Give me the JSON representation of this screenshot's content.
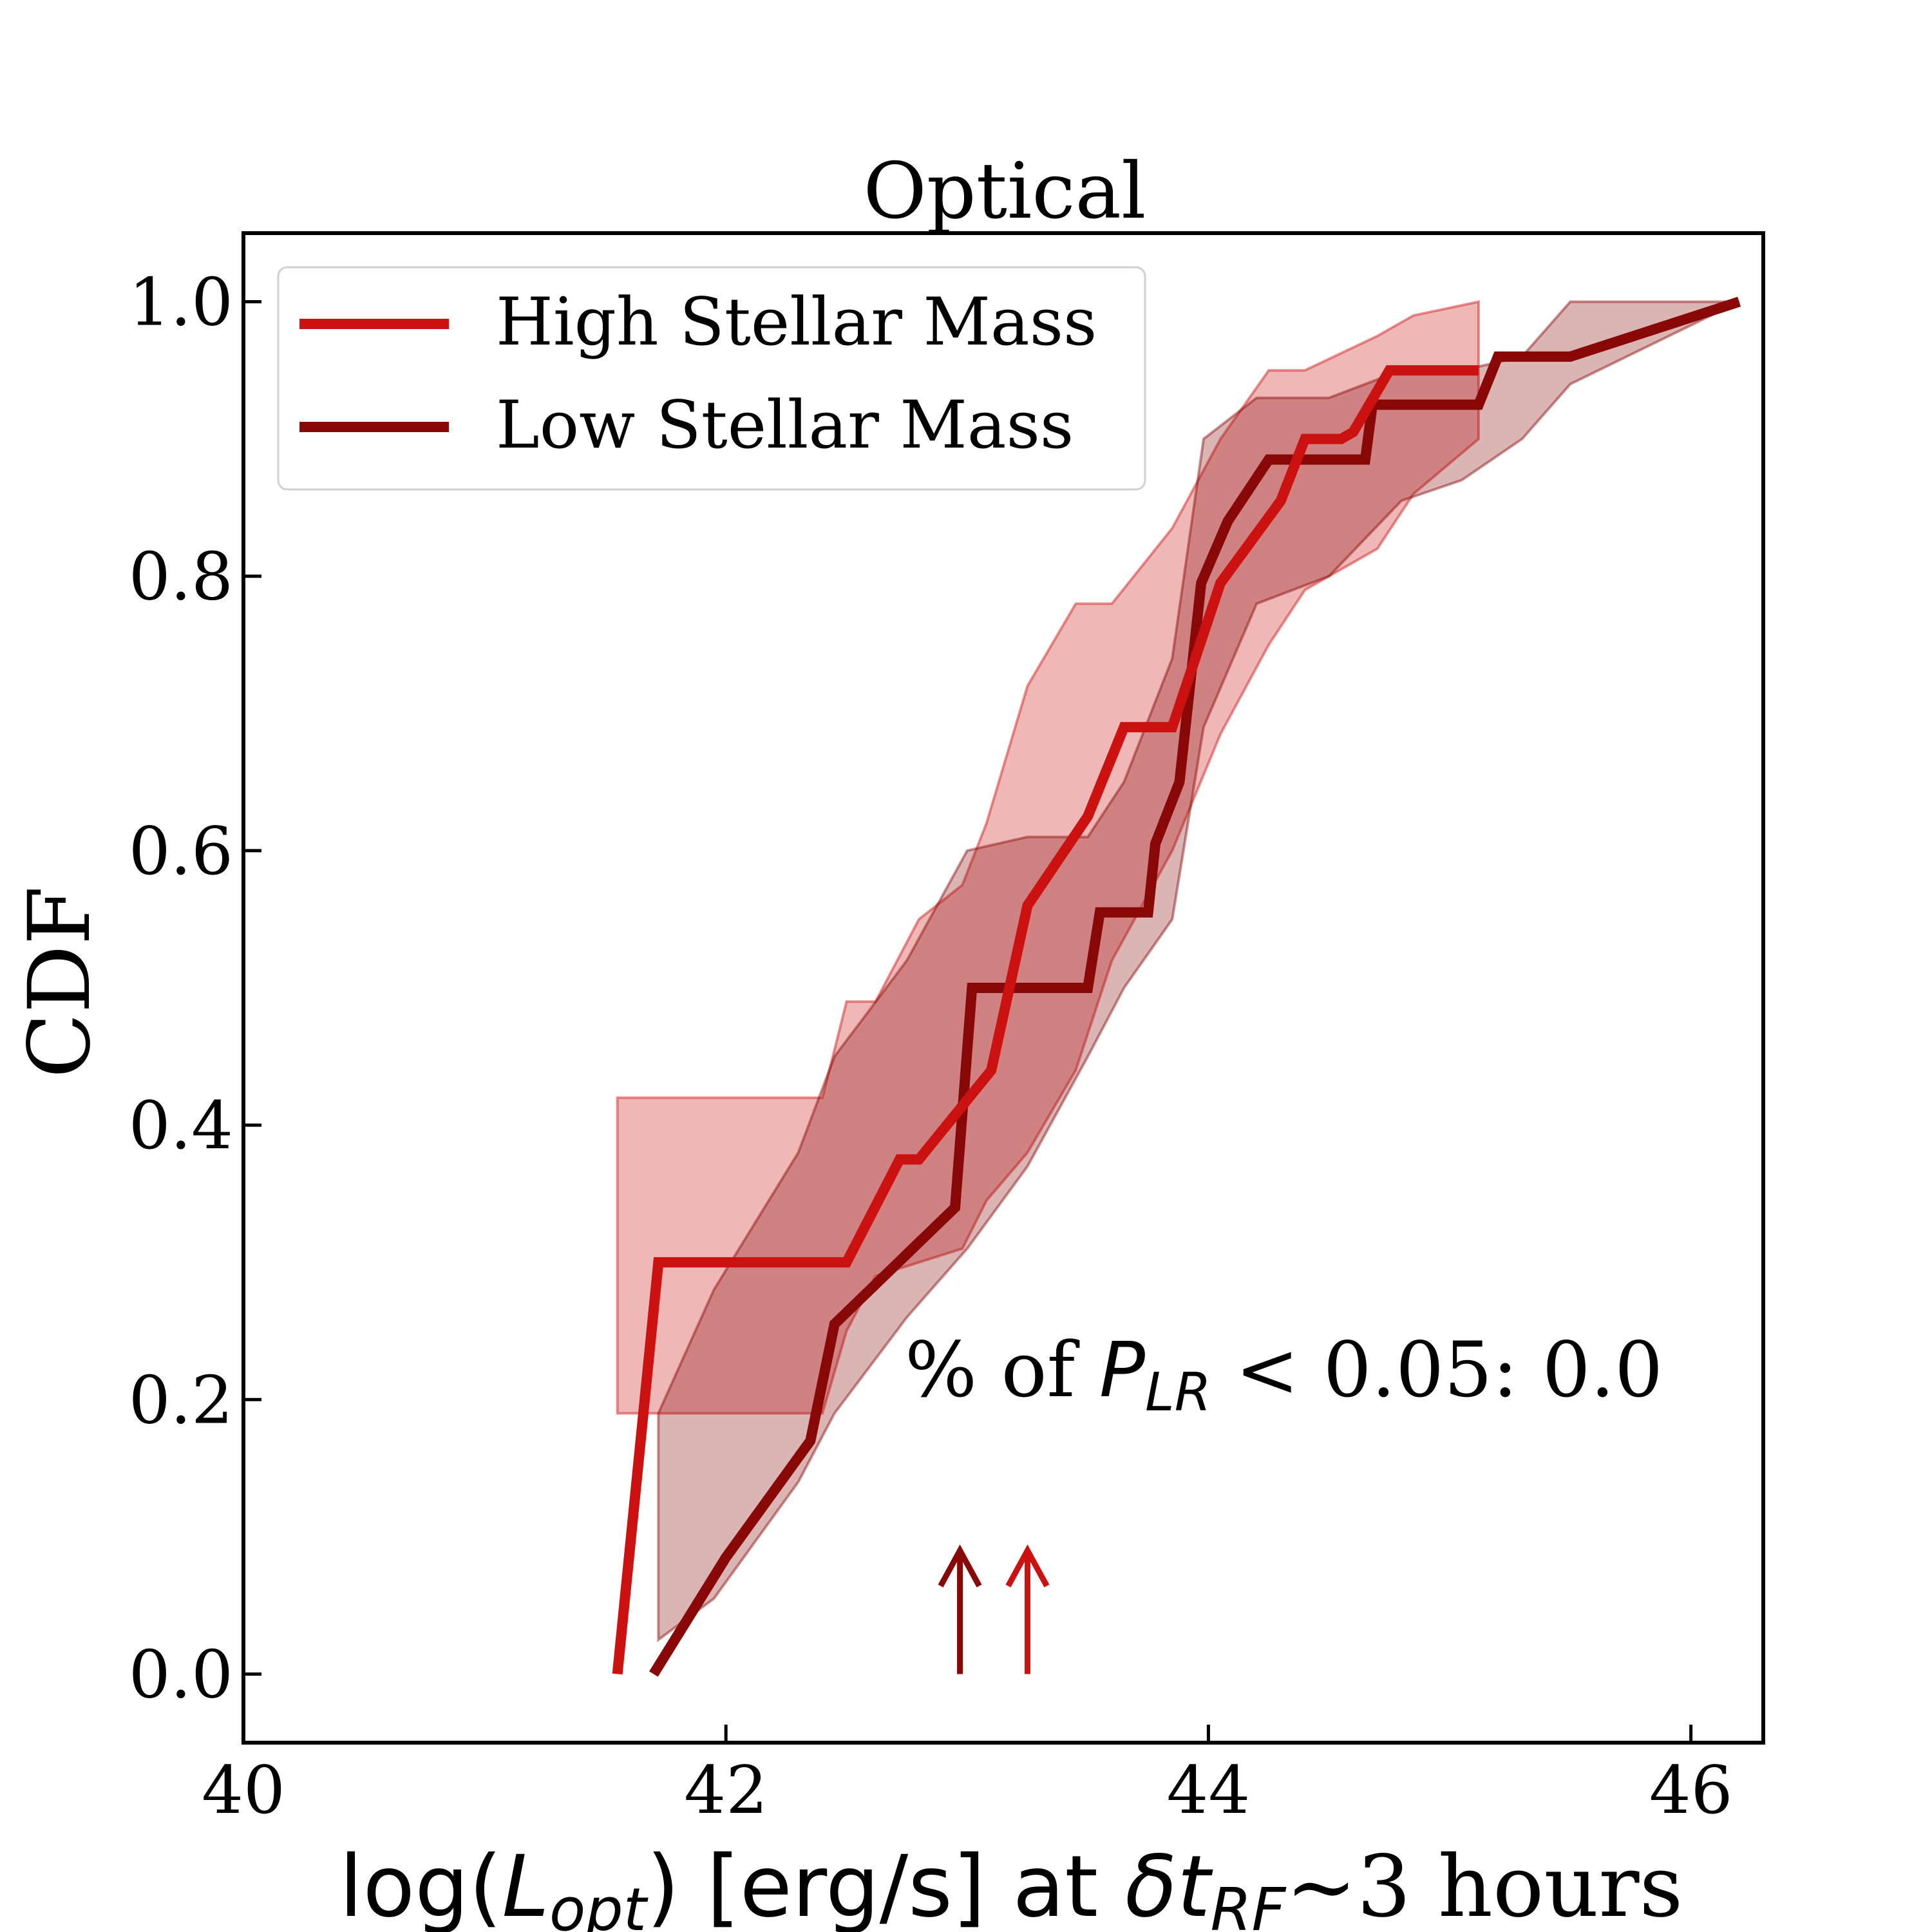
{
  "chart_data": {
    "type": "line",
    "title": "Optical",
    "xlabel": "log(L_opt) [erg/s] at δt_RF~3 hours",
    "xlabel_parts": {
      "pre": "log(",
      "sym": "L",
      "sub": "opt",
      "mid": ") [erg/s] at ",
      "delta": "δ",
      "t": "t",
      "tsub": "RF",
      "post": "~3 hours"
    },
    "ylabel": "CDF",
    "xlim": [
      40.0,
      46.3
    ],
    "ylim": [
      -0.05,
      1.05
    ],
    "xticks": [
      40,
      42,
      44,
      46
    ],
    "yticks": [
      0.0,
      0.2,
      0.4,
      0.6,
      0.8,
      1.0
    ],
    "ytick_labels": [
      "0.0",
      "0.2",
      "0.4",
      "0.6",
      "0.8",
      "1.0"
    ],
    "grid": false,
    "legend_position": "top-left",
    "annotation": {
      "pre": "% of ",
      "sym": "P",
      "sub": "LR",
      "post": " < 0.05: 0.0"
    },
    "series": [
      {
        "name": "High Stellar Mass",
        "color": "#cc1111",
        "x": [
          41.55,
          41.72,
          42.5,
          42.72,
          42.8,
          43.1,
          43.25,
          43.5,
          43.65,
          43.85,
          44.05,
          44.3,
          44.4,
          44.55,
          44.6,
          44.75,
          45.12
        ],
        "y": [
          0.0,
          0.3,
          0.3,
          0.375,
          0.375,
          0.44,
          0.56,
          0.625,
          0.69,
          0.69,
          0.795,
          0.855,
          0.9,
          0.9,
          0.905,
          0.95,
          0.95
        ],
        "band_x": [
          41.55,
          41.72,
          42.4,
          42.5,
          42.62,
          42.8,
          42.98,
          43.08,
          43.25,
          43.45,
          43.6,
          43.85,
          44.05,
          44.25,
          44.4,
          44.7,
          44.85,
          45.12
        ],
        "band_upper": [
          0.42,
          0.42,
          0.42,
          0.49,
          0.49,
          0.55,
          0.575,
          0.62,
          0.72,
          0.78,
          0.78,
          0.835,
          0.9,
          0.95,
          0.95,
          0.975,
          0.99,
          1.0
        ],
        "band_lower": [
          0.19,
          0.19,
          0.19,
          0.25,
          0.29,
          0.3,
          0.31,
          0.345,
          0.38,
          0.44,
          0.52,
          0.6,
          0.685,
          0.75,
          0.79,
          0.82,
          0.86,
          0.9
        ]
      },
      {
        "name": "Low Stellar Mass",
        "color": "#880808",
        "x": [
          41.7,
          42.0,
          42.35,
          42.45,
          42.95,
          43.02,
          43.5,
          43.55,
          43.75,
          43.78,
          43.88,
          43.97,
          44.08,
          44.25,
          44.65,
          44.68,
          45.12,
          45.2,
          45.5,
          46.2
        ],
        "y": [
          0.0,
          0.085,
          0.17,
          0.255,
          0.34,
          0.5,
          0.5,
          0.555,
          0.555,
          0.605,
          0.65,
          0.795,
          0.84,
          0.885,
          0.885,
          0.925,
          0.925,
          0.96,
          0.96,
          1.0
        ],
        "band_x": [
          41.72,
          41.95,
          42.3,
          42.45,
          42.75,
          43.0,
          43.25,
          43.5,
          43.65,
          43.85,
          43.98,
          44.2,
          44.5,
          44.8,
          45.05,
          45.3,
          45.5,
          46.2
        ],
        "band_upper": [
          0.19,
          0.28,
          0.38,
          0.45,
          0.52,
          0.6,
          0.61,
          0.61,
          0.65,
          0.74,
          0.9,
          0.93,
          0.93,
          0.95,
          0.95,
          0.96,
          1.0,
          1.0
        ],
        "band_lower": [
          0.025,
          0.055,
          0.14,
          0.19,
          0.26,
          0.31,
          0.37,
          0.45,
          0.5,
          0.55,
          0.69,
          0.78,
          0.8,
          0.855,
          0.87,
          0.9,
          0.94,
          1.0
        ]
      }
    ],
    "arrows": [
      {
        "series": "Low Stellar Mass",
        "x": 42.97,
        "color": "#880808"
      },
      {
        "series": "High Stellar Mass",
        "x": 43.25,
        "color": "#cc1111"
      }
    ]
  }
}
